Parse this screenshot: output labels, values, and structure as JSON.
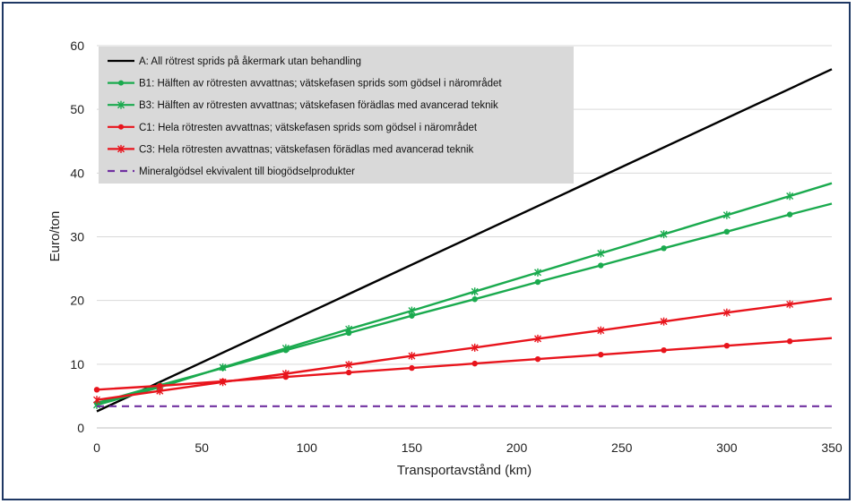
{
  "chart_data": {
    "type": "line",
    "title": "",
    "xlabel": "Transportavstånd (km)",
    "ylabel": "Euro/ton",
    "xlim": [
      0,
      350
    ],
    "ylim": [
      0,
      60
    ],
    "xticks": [
      "0",
      "50",
      "100",
      "150",
      "200",
      "250",
      "300",
      "350"
    ],
    "yticks": [
      "0",
      "10",
      "20",
      "30",
      "40",
      "50",
      "60"
    ],
    "grid": "horizontal",
    "legend_position": "top-left",
    "series": [
      {
        "name": "A: All rötrest sprids på åkermark utan behandling",
        "color": "#000000",
        "marker": "none",
        "dash": "solid",
        "x": [
          0,
          350
        ],
        "y": [
          2.6,
          56.3
        ]
      },
      {
        "name": "B1: Hälften av rötresten avvattnas; vätskefasen sprids som gödsel i närområdet",
        "color": "#1aaa4e",
        "marker": "dot",
        "dash": "solid",
        "x": [
          0,
          30,
          60,
          90,
          120,
          150,
          180,
          210,
          240,
          270,
          300,
          330,
          350
        ],
        "y": [
          3.9,
          6.7,
          9.4,
          12.2,
          14.9,
          17.6,
          20.2,
          22.9,
          25.5,
          28.2,
          30.8,
          33.5,
          35.2
        ]
      },
      {
        "name": "B3: Hälften av rötresten avvattnas; vätskefasen förädlas med avancerad teknik",
        "color": "#1aaa4e",
        "marker": "star",
        "dash": "solid",
        "x": [
          0,
          30,
          60,
          90,
          120,
          150,
          180,
          210,
          240,
          270,
          300,
          330,
          350
        ],
        "y": [
          3.6,
          6.4,
          9.5,
          12.5,
          15.5,
          18.4,
          21.4,
          24.4,
          27.4,
          30.4,
          33.4,
          36.4,
          38.4
        ]
      },
      {
        "name": "C1: Hela rötresten avvattnas; vätskefasen sprids som gödsel i närområdet",
        "color": "#e8141c",
        "marker": "dot",
        "dash": "solid",
        "x": [
          0,
          30,
          60,
          90,
          120,
          150,
          180,
          210,
          240,
          270,
          300,
          330,
          350
        ],
        "y": [
          6.0,
          6.6,
          7.3,
          8.0,
          8.7,
          9.4,
          10.1,
          10.8,
          11.5,
          12.2,
          12.9,
          13.6,
          14.1
        ]
      },
      {
        "name": "C3: Hela rötresten avvattnas; vätskefasen förädlas med avancerad teknik",
        "color": "#e8141c",
        "marker": "star",
        "dash": "solid",
        "x": [
          0,
          30,
          60,
          90,
          120,
          150,
          180,
          210,
          240,
          270,
          300,
          330,
          350
        ],
        "y": [
          4.4,
          5.8,
          7.2,
          8.5,
          9.9,
          11.3,
          12.6,
          14.0,
          15.3,
          16.7,
          18.1,
          19.4,
          20.3
        ]
      },
      {
        "name": "Mineralgödsel ekvivalent till biogödselprodukter",
        "color": "#7030a0",
        "marker": "none",
        "dash": "dashed",
        "x": [
          0,
          350
        ],
        "y": [
          3.4,
          3.4
        ]
      }
    ]
  }
}
